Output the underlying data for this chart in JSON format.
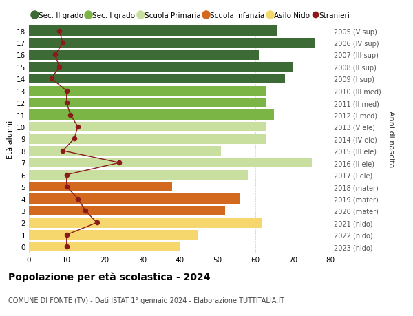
{
  "ages": [
    18,
    17,
    16,
    15,
    14,
    13,
    12,
    11,
    10,
    9,
    8,
    7,
    6,
    5,
    4,
    3,
    2,
    1,
    0
  ],
  "years": [
    "2005 (V sup)",
    "2006 (IV sup)",
    "2007 (III sup)",
    "2008 (II sup)",
    "2009 (I sup)",
    "2010 (III med)",
    "2011 (II med)",
    "2012 (I med)",
    "2013 (V ele)",
    "2014 (IV ele)",
    "2015 (III ele)",
    "2016 (II ele)",
    "2017 (I ele)",
    "2018 (mater)",
    "2019 (mater)",
    "2020 (mater)",
    "2021 (nido)",
    "2022 (nido)",
    "2023 (nido)"
  ],
  "bar_values": [
    66,
    76,
    61,
    70,
    68,
    63,
    63,
    65,
    63,
    63,
    51,
    75,
    58,
    38,
    56,
    52,
    62,
    45,
    40
  ],
  "bar_colors": [
    "#3d6b35",
    "#3d6b35",
    "#3d6b35",
    "#3d6b35",
    "#3d6b35",
    "#7ab545",
    "#7ab545",
    "#7ab545",
    "#c8dfa0",
    "#c8dfa0",
    "#c8dfa0",
    "#c8dfa0",
    "#c8dfa0",
    "#d2691e",
    "#d2691e",
    "#d2691e",
    "#f5d76e",
    "#f5d76e",
    "#f5d76e"
  ],
  "stranieri_values": [
    8,
    9,
    7,
    8,
    6,
    10,
    10,
    11,
    13,
    12,
    9,
    24,
    10,
    10,
    13,
    15,
    18,
    10,
    10
  ],
  "legend_labels": [
    "Sec. II grado",
    "Sec. I grado",
    "Scuola Primaria",
    "Scuola Infanzia",
    "Asilo Nido",
    "Stranieri"
  ],
  "legend_colors": [
    "#3d6b35",
    "#7ab545",
    "#c8dfa0",
    "#d2691e",
    "#f5d76e",
    "#aa0000"
  ],
  "ylabel_left": "Età alunni",
  "ylabel_right": "Anni di nascita",
  "title": "Popolazione per età scolastica - 2024",
  "subtitle": "COMUNE DI FONTE (TV) - Dati ISTAT 1° gennaio 2024 - Elaborazione TUTTITALIA.IT",
  "xlim": [
    0,
    80
  ],
  "background_color": "#ffffff",
  "line_color": "#8b1a1a"
}
